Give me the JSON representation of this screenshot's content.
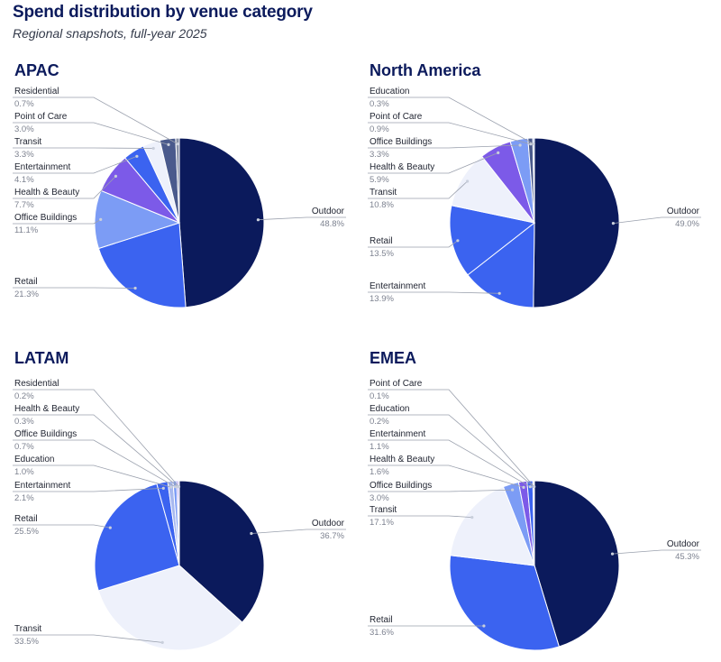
{
  "header": {
    "title": "Spend distribution by venue category",
    "subtitle": "Regional snapshots, full-year 2025"
  },
  "colors": {
    "Outdoor": "#0b1a5c",
    "Retail": "#3b63f0",
    "Entertainment": "#3b63f0",
    "Transit": "#eef1fb",
    "Office Buildings": "#7c9cf5",
    "Health & Beauty": "#7c5ae8",
    "Point of Care": "#4a5a8c",
    "Residential": "#8a93a8",
    "Education": "#a7b8ef"
  },
  "chart_data": [
    {
      "type": "pie",
      "title": "APAC",
      "slices": [
        {
          "label": "Outdoor",
          "value": 48.8,
          "display": "48.8%"
        },
        {
          "label": "Retail",
          "value": 21.3,
          "display": "21.3%"
        },
        {
          "label": "Office Buildings",
          "value": 11.1,
          "display": "11.1%"
        },
        {
          "label": "Health & Beauty",
          "value": 7.7,
          "display": "7.7%"
        },
        {
          "label": "Entertainment",
          "value": 4.1,
          "display": "4.1%"
        },
        {
          "label": "Transit",
          "value": 3.3,
          "display": "3.3%"
        },
        {
          "label": "Point of Care",
          "value": 3.0,
          "display": "3.0%"
        },
        {
          "label": "Residential",
          "value": 0.7,
          "display": "0.7%"
        }
      ]
    },
    {
      "type": "pie",
      "title": "North America",
      "slices": [
        {
          "label": "Outdoor",
          "value": 49.0,
          "display": "49.0%"
        },
        {
          "label": "Entertainment",
          "value": 13.9,
          "display": "13.9%"
        },
        {
          "label": "Retail",
          "value": 13.5,
          "display": "13.5%"
        },
        {
          "label": "Transit",
          "value": 10.8,
          "display": "10.8%"
        },
        {
          "label": "Health & Beauty",
          "value": 5.9,
          "display": "5.9%"
        },
        {
          "label": "Office Buildings",
          "value": 3.3,
          "display": "3.3%"
        },
        {
          "label": "Point of Care",
          "value": 0.9,
          "display": "0.9%"
        },
        {
          "label": "Education",
          "value": 0.3,
          "display": "0.3%"
        }
      ]
    },
    {
      "type": "pie",
      "title": "LATAM",
      "slices": [
        {
          "label": "Outdoor",
          "value": 36.7,
          "display": "36.7%"
        },
        {
          "label": "Transit",
          "value": 33.5,
          "display": "33.5%"
        },
        {
          "label": "Retail",
          "value": 25.5,
          "display": "25.5%"
        },
        {
          "label": "Entertainment",
          "value": 2.1,
          "display": "2.1%"
        },
        {
          "label": "Education",
          "value": 1.0,
          "display": "1.0%"
        },
        {
          "label": "Office Buildings",
          "value": 0.7,
          "display": "0.7%"
        },
        {
          "label": "Health & Beauty",
          "value": 0.3,
          "display": "0.3%"
        },
        {
          "label": "Residential",
          "value": 0.2,
          "display": "0.2%"
        }
      ]
    },
    {
      "type": "pie",
      "title": "EMEA",
      "slices": [
        {
          "label": "Outdoor",
          "value": 45.3,
          "display": "45.3%"
        },
        {
          "label": "Retail",
          "value": 31.6,
          "display": "31.6%"
        },
        {
          "label": "Transit",
          "value": 17.1,
          "display": "17.1%"
        },
        {
          "label": "Office Buildings",
          "value": 3.0,
          "display": "3.0%"
        },
        {
          "label": "Health & Beauty",
          "value": 1.6,
          "display": "1.6%"
        },
        {
          "label": "Entertainment",
          "value": 1.1,
          "display": "1.1%"
        },
        {
          "label": "Education",
          "value": 0.2,
          "display": "0.2%"
        },
        {
          "label": "Point of Care",
          "value": 0.1,
          "display": "0.1%"
        }
      ]
    }
  ]
}
